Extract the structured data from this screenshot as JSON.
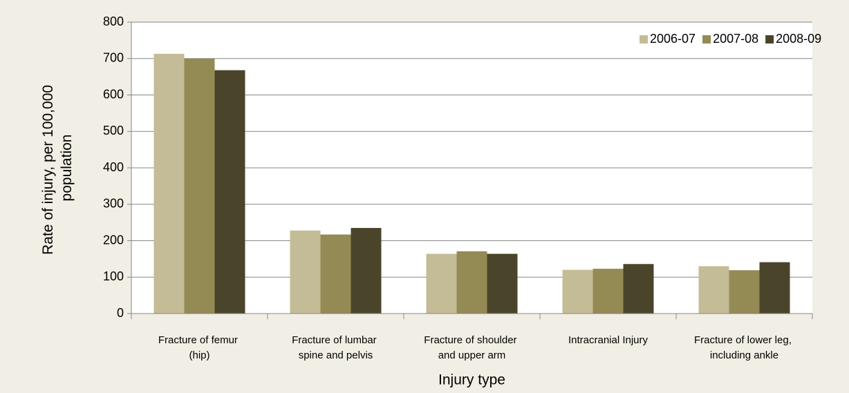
{
  "chart_data": {
    "type": "bar",
    "categories": [
      "Fracture of femur (hip)",
      "Fracture of lumbar spine and pelvis",
      "Fracture of shoulder and upper arm",
      "Intracranial Injury",
      "Fracture of lower leg, including ankle"
    ],
    "series": [
      {
        "name": "2006-07",
        "color": "#c4bc96",
        "values": [
          713,
          228,
          164,
          120,
          130
        ]
      },
      {
        "name": "2007-08",
        "color": "#948a54",
        "values": [
          700,
          217,
          171,
          123,
          119
        ]
      },
      {
        "name": "2008-09",
        "color": "#4a452a",
        "values": [
          668,
          235,
          164,
          136,
          141
        ]
      }
    ],
    "x_label": "Injury type",
    "y_label": "Rate of injury, per 100,000 population",
    "ylim": [
      0,
      800
    ],
    "yticks": [
      0,
      100,
      200,
      300,
      400,
      500,
      600,
      700,
      800
    ],
    "grid": true,
    "legend": "top-right"
  }
}
